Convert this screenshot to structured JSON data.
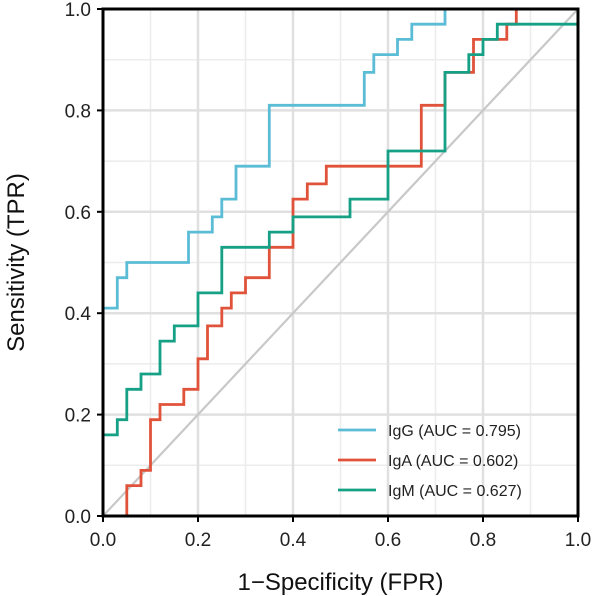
{
  "chart_data": {
    "type": "line",
    "xlabel": "1−Specificity (FPR)",
    "ylabel": "Sensitivity (TPR)",
    "xlim": [
      0,
      1
    ],
    "ylim": [
      0,
      1
    ],
    "x_ticks": [
      "0.0",
      "0.2",
      "0.4",
      "0.6",
      "0.8",
      "1.0"
    ],
    "y_ticks": [
      "0.0",
      "0.2",
      "0.4",
      "0.6",
      "0.8",
      "1.0"
    ],
    "grid": true,
    "legend_position": "bottom-right",
    "diagonal_reference_color": "#c8c8c8",
    "series": [
      {
        "name": "IgG (AUC = 0.795)",
        "color": "#5bbcd6",
        "points": [
          [
            0,
            0
          ],
          [
            0,
            0.41
          ],
          [
            0.03,
            0.41
          ],
          [
            0.03,
            0.47
          ],
          [
            0.05,
            0.47
          ],
          [
            0.05,
            0.5
          ],
          [
            0.18,
            0.5
          ],
          [
            0.18,
            0.56
          ],
          [
            0.23,
            0.56
          ],
          [
            0.23,
            0.59
          ],
          [
            0.25,
            0.59
          ],
          [
            0.25,
            0.625
          ],
          [
            0.28,
            0.625
          ],
          [
            0.28,
            0.69
          ],
          [
            0.35,
            0.69
          ],
          [
            0.35,
            0.81
          ],
          [
            0.55,
            0.81
          ],
          [
            0.55,
            0.875
          ],
          [
            0.57,
            0.875
          ],
          [
            0.57,
            0.91
          ],
          [
            0.62,
            0.91
          ],
          [
            0.62,
            0.94
          ],
          [
            0.65,
            0.94
          ],
          [
            0.65,
            0.97
          ],
          [
            0.72,
            0.97
          ],
          [
            0.72,
            1.0
          ],
          [
            1.0,
            1.0
          ]
        ]
      },
      {
        "name": "IgA (AUC = 0.602)",
        "color": "#e0533a",
        "points": [
          [
            0.05,
            0
          ],
          [
            0.05,
            0.06
          ],
          [
            0.08,
            0.06
          ],
          [
            0.08,
            0.09
          ],
          [
            0.1,
            0.09
          ],
          [
            0.1,
            0.19
          ],
          [
            0.12,
            0.19
          ],
          [
            0.12,
            0.22
          ],
          [
            0.17,
            0.22
          ],
          [
            0.17,
            0.25
          ],
          [
            0.2,
            0.25
          ],
          [
            0.2,
            0.31
          ],
          [
            0.22,
            0.31
          ],
          [
            0.22,
            0.375
          ],
          [
            0.25,
            0.375
          ],
          [
            0.25,
            0.41
          ],
          [
            0.27,
            0.41
          ],
          [
            0.27,
            0.44
          ],
          [
            0.3,
            0.44
          ],
          [
            0.3,
            0.47
          ],
          [
            0.35,
            0.47
          ],
          [
            0.35,
            0.53
          ],
          [
            0.4,
            0.53
          ],
          [
            0.4,
            0.625
          ],
          [
            0.43,
            0.625
          ],
          [
            0.43,
            0.655
          ],
          [
            0.47,
            0.655
          ],
          [
            0.47,
            0.69
          ],
          [
            0.67,
            0.69
          ],
          [
            0.67,
            0.81
          ],
          [
            0.72,
            0.81
          ],
          [
            0.72,
            0.875
          ],
          [
            0.78,
            0.875
          ],
          [
            0.78,
            0.94
          ],
          [
            0.85,
            0.94
          ],
          [
            0.85,
            0.97
          ],
          [
            0.87,
            0.97
          ],
          [
            0.87,
            1.0
          ],
          [
            1.0,
            1.0
          ]
        ]
      },
      {
        "name": "IgM (AUC = 0.627)",
        "color": "#16a085",
        "points": [
          [
            0,
            0
          ],
          [
            0,
            0.16
          ],
          [
            0.03,
            0.16
          ],
          [
            0.03,
            0.19
          ],
          [
            0.05,
            0.19
          ],
          [
            0.05,
            0.25
          ],
          [
            0.08,
            0.25
          ],
          [
            0.08,
            0.28
          ],
          [
            0.12,
            0.28
          ],
          [
            0.12,
            0.345
          ],
          [
            0.15,
            0.345
          ],
          [
            0.15,
            0.375
          ],
          [
            0.2,
            0.375
          ],
          [
            0.2,
            0.44
          ],
          [
            0.25,
            0.44
          ],
          [
            0.25,
            0.53
          ],
          [
            0.35,
            0.53
          ],
          [
            0.35,
            0.56
          ],
          [
            0.4,
            0.56
          ],
          [
            0.4,
            0.59
          ],
          [
            0.52,
            0.59
          ],
          [
            0.52,
            0.625
          ],
          [
            0.6,
            0.625
          ],
          [
            0.6,
            0.72
          ],
          [
            0.72,
            0.72
          ],
          [
            0.72,
            0.875
          ],
          [
            0.77,
            0.875
          ],
          [
            0.77,
            0.91
          ],
          [
            0.8,
            0.91
          ],
          [
            0.8,
            0.94
          ],
          [
            0.83,
            0.94
          ],
          [
            0.83,
            0.97
          ],
          [
            1.0,
            0.97
          ]
        ]
      }
    ]
  }
}
